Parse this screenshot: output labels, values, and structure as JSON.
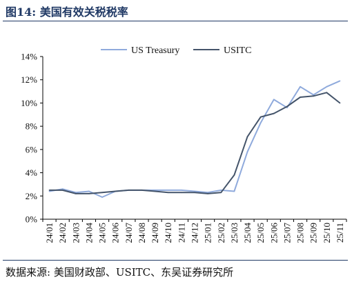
{
  "figure": {
    "title": "图14:  美国有效关税税率",
    "source": "数据来源:  美国财政部、USITC、东吴证券研究所"
  },
  "colors": {
    "header": "#1f3864",
    "us_treasury": "#8faadc",
    "usitc": "#44546a"
  },
  "chart_data": {
    "type": "line",
    "title": "",
    "xlabel": "",
    "ylabel": "",
    "categories": [
      "24/01",
      "24/02",
      "24/03",
      "24/04",
      "24/05",
      "24/06",
      "24/07",
      "24/08",
      "24/09",
      "24/10",
      "24/11",
      "24/12",
      "25/01",
      "25/02",
      "25/03",
      "25/04",
      "25/05",
      "25/06",
      "25/07",
      "25/08",
      "25/09",
      "25/10",
      "25/11"
    ],
    "series": [
      {
        "name": "US Treasury",
        "values": [
          2.4,
          2.6,
          2.3,
          2.4,
          1.9,
          2.4,
          2.5,
          2.5,
          2.5,
          2.5,
          2.5,
          2.4,
          2.3,
          2.5,
          2.4,
          5.8,
          8.3,
          10.3,
          9.6,
          11.4,
          10.7,
          11.4,
          11.9
        ]
      },
      {
        "name": "USITC",
        "values": [
          2.5,
          2.5,
          2.2,
          2.2,
          2.3,
          2.4,
          2.5,
          2.5,
          2.4,
          2.3,
          2.3,
          2.3,
          2.2,
          2.3,
          3.8,
          7.1,
          8.8,
          9.1,
          9.7,
          10.5,
          10.6,
          10.9,
          10.0
        ]
      }
    ],
    "ylim": [
      0,
      14
    ],
    "yticks": [
      0,
      2,
      4,
      6,
      8,
      10,
      12,
      14
    ],
    "ytick_labels": [
      "0%",
      "2%",
      "4%",
      "6%",
      "8%",
      "10%",
      "12%",
      "14%"
    ],
    "grid": false,
    "legend_position": "top"
  }
}
